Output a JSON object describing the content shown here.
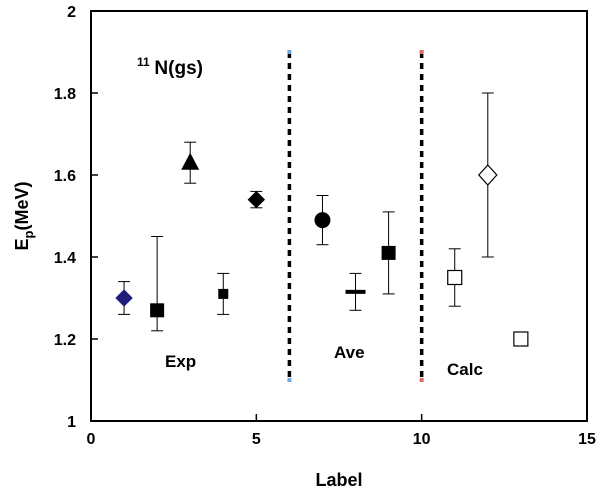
{
  "chart_data": {
    "type": "scatter",
    "title": "",
    "xlabel": "Label",
    "ylabel": {
      "main": "E",
      "sub": "p",
      "unit": "(MeV)"
    },
    "xlim": [
      0,
      15
    ],
    "ylim": [
      1,
      2
    ],
    "x_ticks": [
      "0",
      "5",
      "10",
      "15"
    ],
    "y_ticks": [
      "1",
      "1.2",
      "1.4",
      "1.6",
      "1.8",
      "2"
    ],
    "grid": false,
    "legend": "none",
    "annotations": {
      "nucleus": {
        "sup": "11",
        "text": "N(gs)"
      },
      "sections": [
        "Exp",
        "Ave",
        "Calc"
      ]
    },
    "divider_x": [
      6,
      10
    ],
    "points": [
      {
        "x": 1,
        "y": 1.3,
        "err_low": 1.26,
        "err_high": 1.34,
        "marker": "diamond-filled",
        "color": "#1f1f7a"
      },
      {
        "x": 2,
        "y": 1.27,
        "err_low": 1.22,
        "err_high": 1.45,
        "marker": "square-filled",
        "color": "#000000"
      },
      {
        "x": 3,
        "y": 1.63,
        "err_low": 1.58,
        "err_high": 1.68,
        "marker": "triangle-filled",
        "color": "#000000"
      },
      {
        "x": 4,
        "y": 1.31,
        "err_low": 1.26,
        "err_high": 1.36,
        "marker": "square-small-filled",
        "color": "#000000"
      },
      {
        "x": 5,
        "y": 1.54,
        "err_low": 1.52,
        "err_high": 1.56,
        "marker": "diamond-filled",
        "color": "#000000"
      },
      {
        "x": 7,
        "y": 1.49,
        "err_low": 1.43,
        "err_high": 1.55,
        "marker": "circle-filled",
        "color": "#000000"
      },
      {
        "x": 8,
        "y": 1.315,
        "err_low": 1.27,
        "err_high": 1.36,
        "marker": "dash",
        "color": "#000000"
      },
      {
        "x": 9,
        "y": 1.41,
        "err_low": 1.31,
        "err_high": 1.51,
        "marker": "square-filled",
        "color": "#000000"
      },
      {
        "x": 11,
        "y": 1.35,
        "err_low": 1.28,
        "err_high": 1.42,
        "marker": "square-open",
        "color": "#000000"
      },
      {
        "x": 12,
        "y": 1.6,
        "err_low": 1.4,
        "err_high": 1.8,
        "marker": "diamond-open",
        "color": "#000000"
      },
      {
        "x": 13,
        "y": 1.2,
        "marker": "square-open",
        "color": "#000000"
      }
    ]
  }
}
